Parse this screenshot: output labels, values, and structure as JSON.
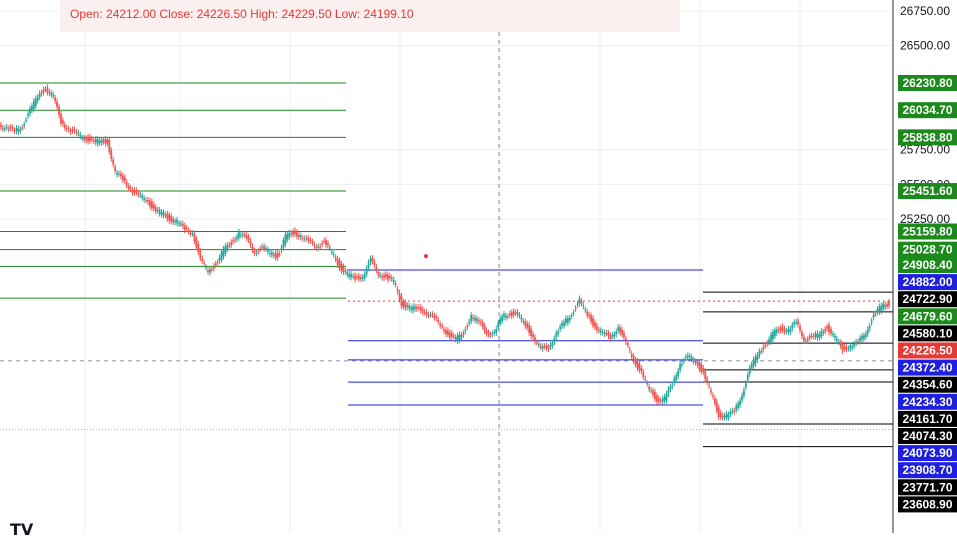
{
  "header": {
    "ohlc_text": "Open: 24212.00 Close: 24226.50 High: 24229.50 Low: 24199.10"
  },
  "chart_data": {
    "type": "line",
    "title": "",
    "xlabel": "",
    "ylabel": "",
    "ylim": [
      23500,
      26900
    ],
    "grid": true,
    "y_ticks": [
      "26750.00",
      "26500.00",
      "25750.00",
      "25500.00",
      "25250.00"
    ],
    "close": 24226.5,
    "series": [
      {
        "values": [
          25930,
          25905,
          25880,
          25925,
          26030,
          26135,
          26195,
          26130,
          25955,
          25895,
          25860,
          25840,
          25810,
          25810,
          25810,
          25580,
          25540,
          25470,
          25410,
          25400,
          25320,
          25290,
          25255,
          25230,
          25170,
          25160,
          24950,
          24880,
          24920,
          25020,
          25080,
          25150,
          25105,
          25020,
          25035,
          25010,
          24980,
          25120,
          25150,
          25130,
          25080,
          25060,
          25080,
          25010,
          24910,
          24850,
          24820,
          24840,
          24950,
          24860,
          24830,
          24800,
          24640,
          24610,
          24600,
          24590,
          24540,
          24490,
          24420,
          24380,
          24430,
          24550,
          24500,
          24440,
          24420,
          24550,
          24570,
          24560,
          24490,
          24400,
          24310,
          24330,
          24420,
          24500,
          24570,
          24660,
          24560,
          24480,
          24420,
          24400,
          24470,
          24350,
          24240,
          24140,
          24020,
          23950,
          23950,
          24060,
          24210,
          24250,
          24230,
          24140,
          23990,
          23840,
          23830,
          23860,
          23990,
          24160,
          24280,
          24340,
          24420,
          24460,
          24450,
          24500,
          24390,
          24390,
          24420,
          24470,
          24390,
          24310,
          24340,
          24350,
          24440,
          24550,
          24620,
          24640
        ]
      }
    ],
    "levels": [
      {
        "value": 26230.8,
        "label": "26230.80",
        "color": "#1b8a1b",
        "label_bg": "#1b8a1b"
      },
      {
        "value": 26034.7,
        "label": "26034.70",
        "color": "#1b8a1b",
        "label_bg": "#1b8a1b"
      },
      {
        "value": 25838.8,
        "label": "25838.80",
        "color": "#1b8a1b",
        "label_bg": "#1b8a1b"
      },
      {
        "value": 25451.6,
        "label": "25451.60",
        "color": "#1b8a1b",
        "label_bg": "#1b8a1b"
      },
      {
        "value": 25159.8,
        "label": "25159.80",
        "color": "#1b8a1b",
        "label_bg": "#1b8a1b"
      },
      {
        "value": 25028.7,
        "label": "25028.70",
        "color": "#1b8a1b",
        "label_bg": "#1b8a1b"
      },
      {
        "value": 24908.4,
        "label": "24908.40",
        "color": "#1b8a1b",
        "label_bg": "#1b8a1b"
      },
      {
        "value": 24882.0,
        "label": "24882.00",
        "color": "#1f1fe0",
        "label_bg": "#1f1fe0"
      },
      {
        "value": 24722.9,
        "label": "24722.90",
        "color": "#000000",
        "label_bg": "#000000"
      },
      {
        "value": 24679.6,
        "label": "24679.60",
        "color": "#1b8a1b",
        "label_bg": "#1b8a1b"
      },
      {
        "value": 24580.1,
        "label": "24580.10",
        "color": "#000000",
        "label_bg": "#000000"
      },
      {
        "value": 24226.5,
        "label": "24226.50",
        "color": "#e53935",
        "label_bg": "#e53935"
      },
      {
        "value": 24372.4,
        "label": "24372.40",
        "color": "#1f1fe0",
        "label_bg": "#1f1fe0"
      },
      {
        "value": 24354.6,
        "label": "24354.60",
        "color": "#000000",
        "label_bg": "#000000"
      },
      {
        "value": 24234.3,
        "label": "24234.30",
        "color": "#1f1fe0",
        "label_bg": "#1f1fe0"
      },
      {
        "value": 24161.7,
        "label": "24161.70",
        "color": "#000000",
        "label_bg": "#000000"
      },
      {
        "value": 24074.3,
        "label": "24074.30",
        "color": "#000000",
        "label_bg": "#000000"
      },
      {
        "value": 24073.9,
        "label": "24073.90",
        "color": "#1f1fe0",
        "label_bg": "#1f1fe0"
      },
      {
        "value": 23908.7,
        "label": "23908.70",
        "color": "#1f1fe0",
        "label_bg": "#1f1fe0"
      },
      {
        "value": 23771.7,
        "label": "23771.70",
        "color": "#000000",
        "label_bg": "#000000"
      },
      {
        "value": 23608.9,
        "label": "23608.90",
        "color": "#000000",
        "label_bg": "#000000"
      }
    ]
  },
  "logo_text": "TV"
}
